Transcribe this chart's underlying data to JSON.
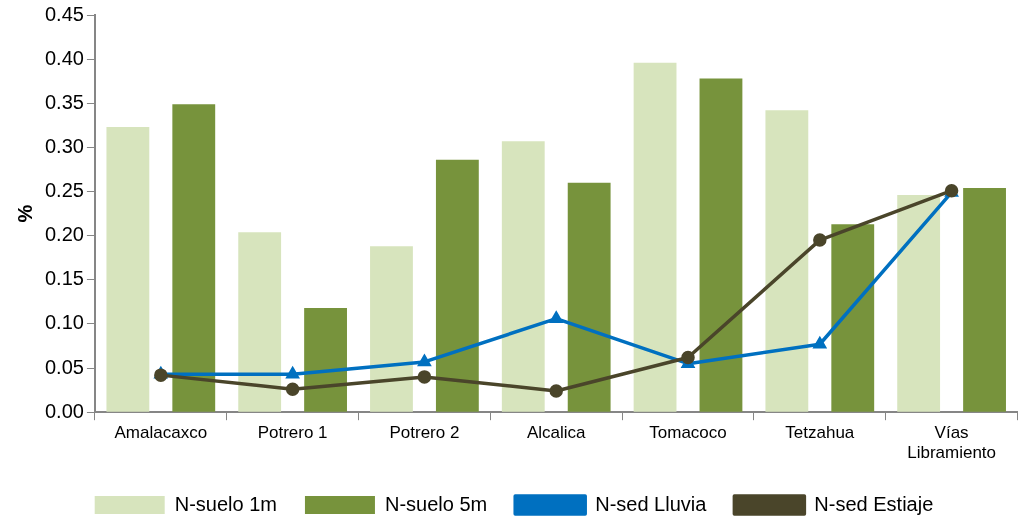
{
  "chart_data": {
    "type": "bar",
    "ylabel": "%",
    "categories": [
      "Amalacaxco",
      "Potrero 1",
      "Potrero 2",
      "Alcalica",
      "Tomacoco",
      "Tetzahua",
      "Vías Libramiento"
    ],
    "series": [
      {
        "name": "N-suelo 1m",
        "color": "#d7e4bd",
        "values": [
          0.323,
          0.204,
          0.188,
          0.307,
          0.396,
          0.342,
          0.246
        ]
      },
      {
        "name": "N-suelo 5m",
        "color": "#77933c",
        "values": [
          0.349,
          0.118,
          0.286,
          0.26,
          0.378,
          0.213,
          0.254
        ]
      },
      {
        "name": "N-sed Lluvia",
        "type": "line",
        "color": "#0070c0",
        "marker": "triangle",
        "values": [
          0.043,
          0.043,
          0.057,
          0.106,
          0.055,
          0.077,
          0.249
        ]
      },
      {
        "name": "N-sed Estiaje",
        "type": "line",
        "color": "#4a452a",
        "marker": "circle",
        "values": [
          0.042,
          0.026,
          0.04,
          0.024,
          0.062,
          0.195,
          0.251
        ]
      }
    ],
    "ylim": [
      0,
      0.45
    ],
    "yticks": [
      {
        "value": 0,
        "label": "0.00"
      },
      {
        "value": 0.05,
        "label": "0.05"
      },
      {
        "value": 0.1,
        "label": "0.10"
      },
      {
        "value": 0.15,
        "label": "0.15"
      },
      {
        "value": 0.2,
        "label": "0.20"
      },
      {
        "value": 0.25,
        "label": "0.25"
      },
      {
        "value": 0.3,
        "label": "0.30"
      },
      {
        "value": 0.35,
        "label": "0.35"
      },
      {
        "value": 0.4,
        "label": "0.40"
      },
      {
        "value": 0.45,
        "label": "0.45"
      }
    ],
    "grid": false,
    "legend": "bottom"
  }
}
